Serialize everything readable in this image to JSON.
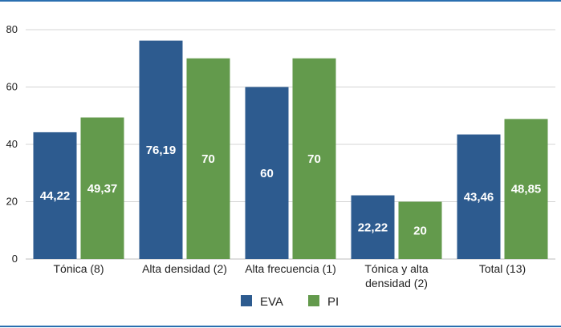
{
  "chart_data": {
    "type": "bar",
    "categories": [
      "Tónica (8)",
      "Alta densidad (2)",
      "Alta frecuencia (1)",
      "Tónica y alta densidad (2)",
      "Total (13)"
    ],
    "category_lines": [
      [
        "Tónica (8)"
      ],
      [
        "Alta densidad (2)"
      ],
      [
        "Alta frecuencia (1)"
      ],
      [
        "Tónica y alta",
        "densidad (2)"
      ],
      [
        "Total (13)"
      ]
    ],
    "series": [
      {
        "name": "EVA",
        "color": "#2d5b8f",
        "values": [
          44.22,
          76.19,
          60,
          22.22,
          43.46
        ],
        "labels": [
          "44,22",
          "76,19",
          "60",
          "22,22",
          "43,46"
        ]
      },
      {
        "name": "PI",
        "color": "#639a4c",
        "values": [
          49.37,
          70,
          70,
          20,
          48.85
        ],
        "labels": [
          "49,37",
          "70",
          "70",
          "20",
          "48,85"
        ]
      }
    ],
    "ylim": [
      0,
      80
    ],
    "yticks": [
      0,
      20,
      40,
      60,
      80
    ],
    "grid": true,
    "legend": "bottom-center",
    "title": "",
    "xlabel": "",
    "ylabel": ""
  }
}
